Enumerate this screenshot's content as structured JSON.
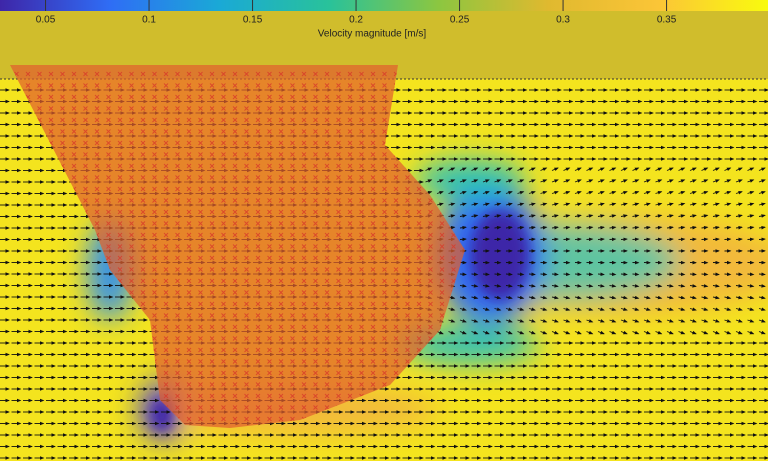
{
  "chart_data": {
    "type": "heatmap",
    "colorbar": {
      "label": "Velocity magnitude [m/s]",
      "lim": [
        0.028,
        0.399
      ],
      "ticks": [
        0.05,
        0.1,
        0.15,
        0.2,
        0.25,
        0.3,
        0.35
      ]
    },
    "colormap": [
      "#3e26a8",
      "#2f6df5",
      "#1aa9d6",
      "#29c29a",
      "#8cc640",
      "#e0b92f",
      "#fbc537",
      "#f9fb0e"
    ]
  }
}
